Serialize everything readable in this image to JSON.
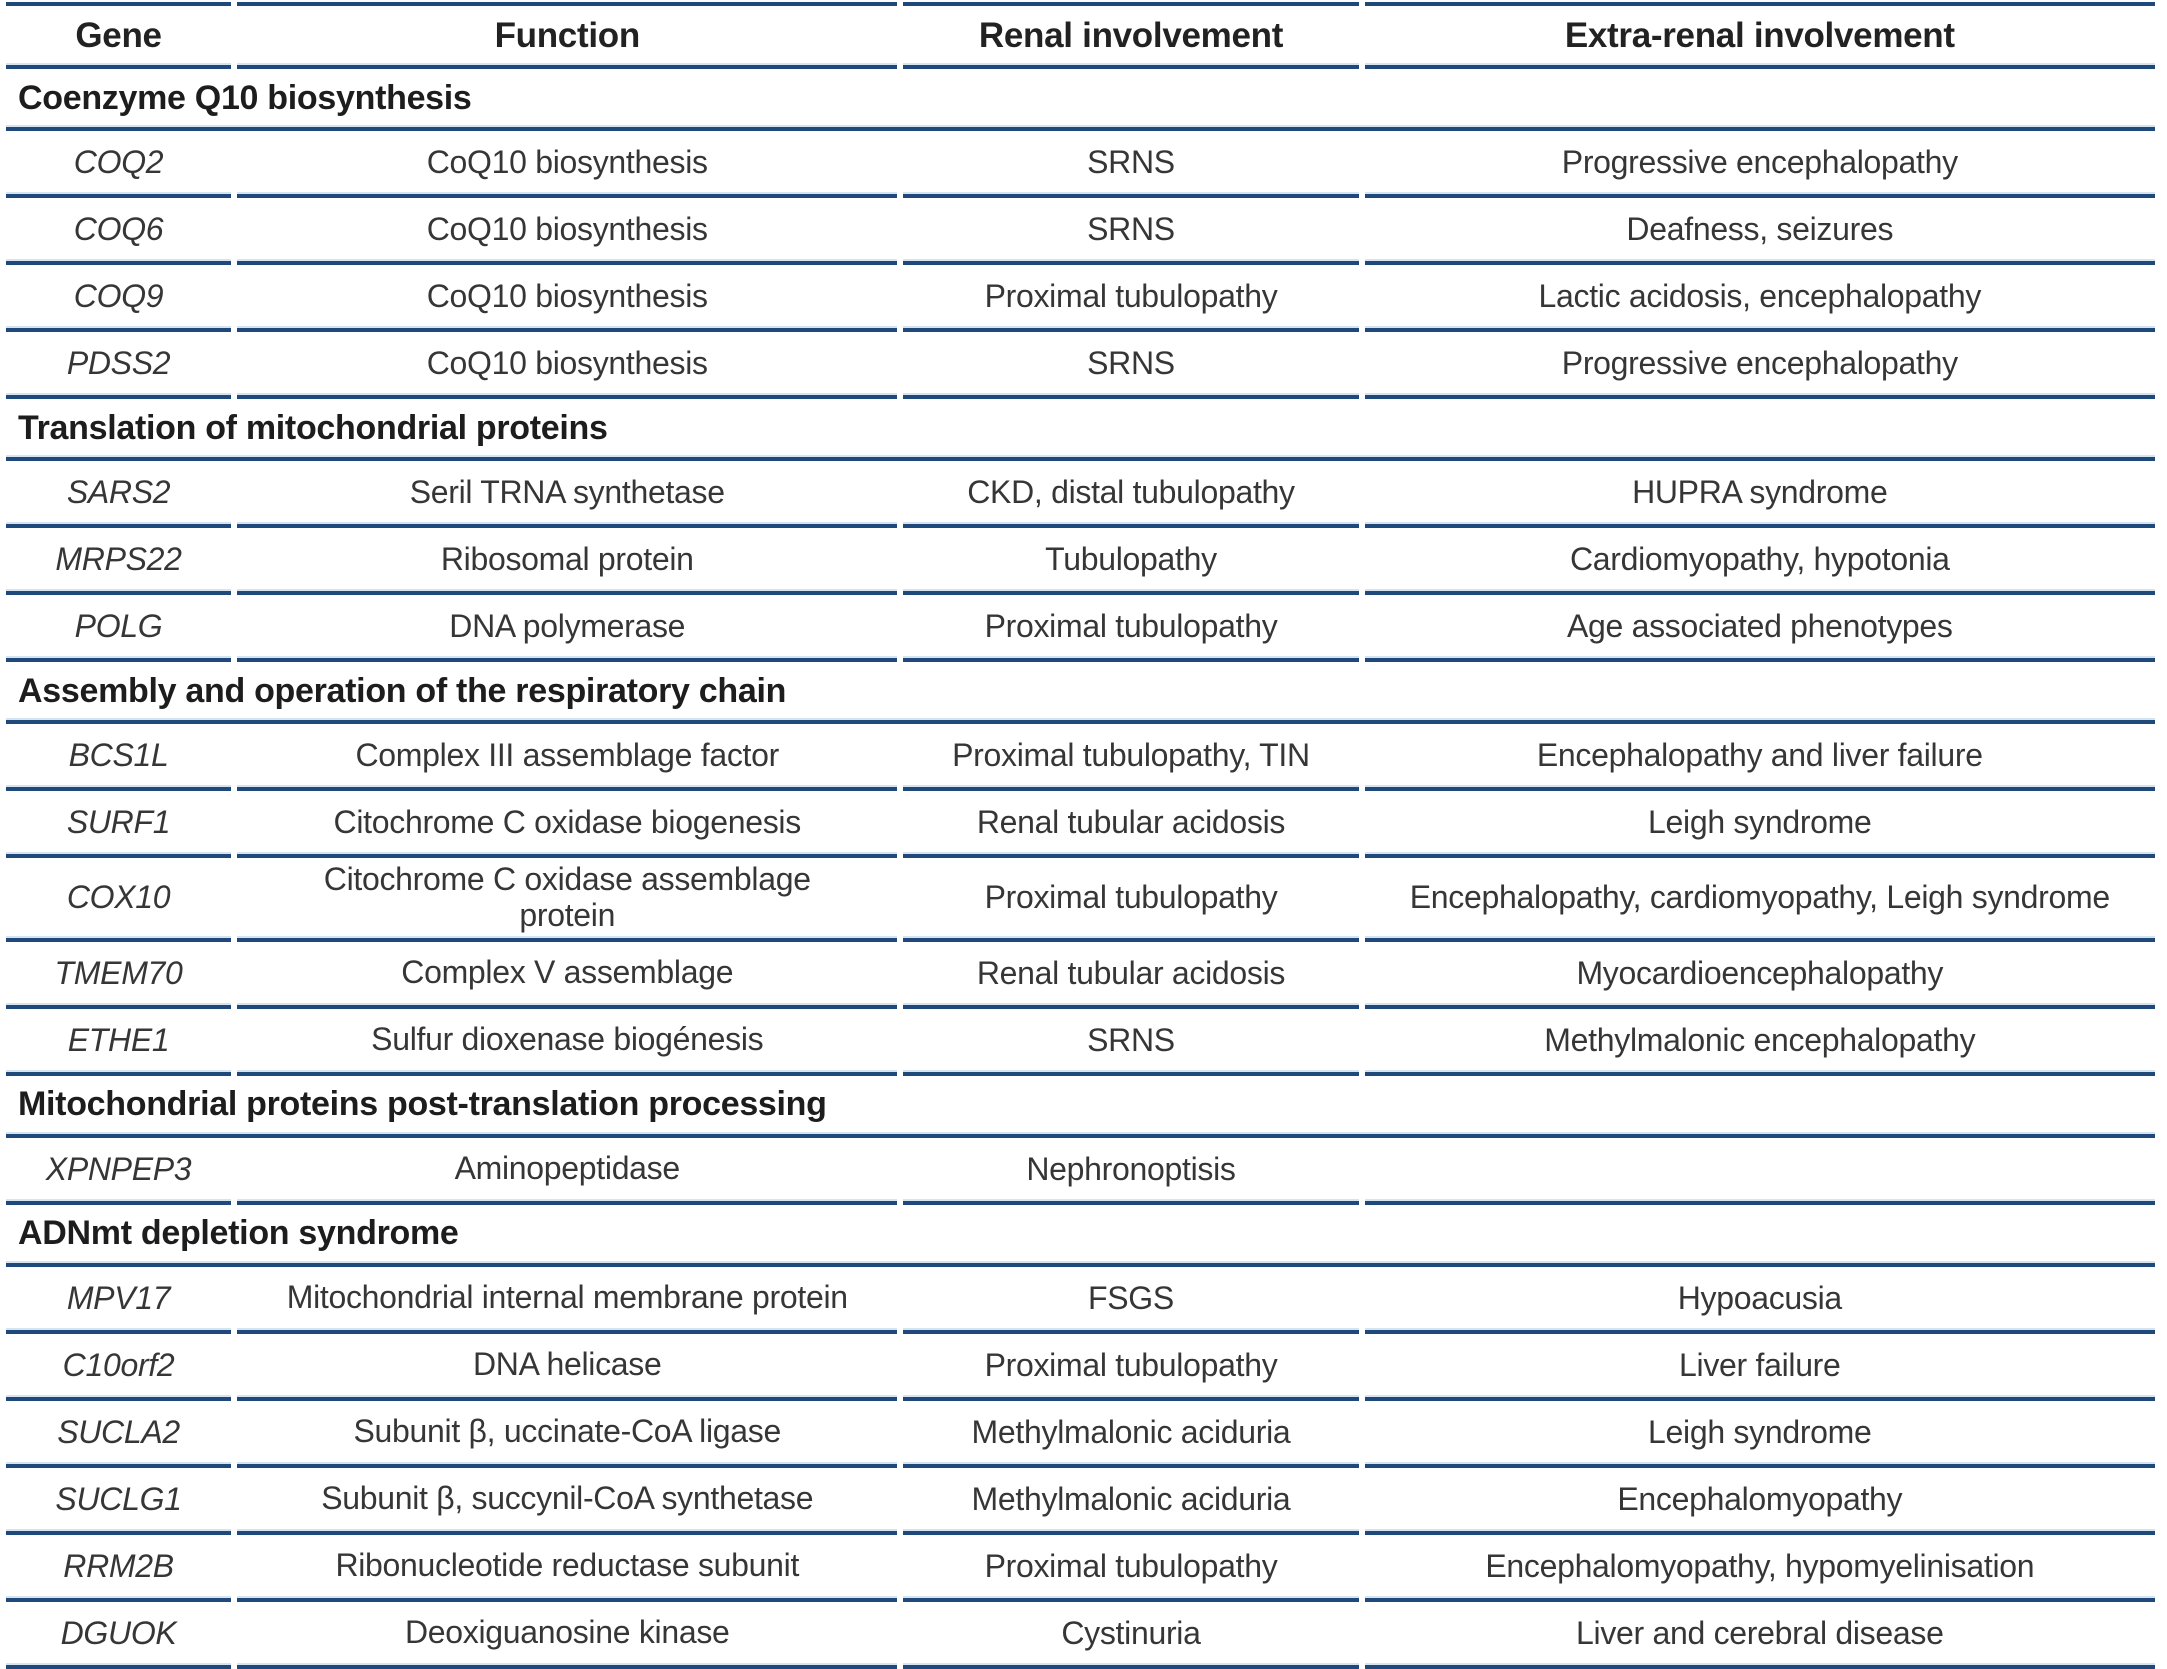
{
  "columns": [
    "Gene",
    "Function",
    "Renal involvement",
    "Extra-renal involvement"
  ],
  "border_color": "#20497b",
  "sections": [
    {
      "title": "Coenzyme Q10 biosynthesis",
      "rows": [
        {
          "cells": [
            "COQ2",
            "CoQ10 biosynthesis",
            "SRNS",
            "Progressive encephalopathy"
          ]
        },
        {
          "cells": [
            "COQ6",
            "CoQ10 biosynthesis",
            "SRNS",
            "Deafness, seizures"
          ]
        },
        {
          "cells": [
            "COQ9",
            "CoQ10 biosynthesis",
            "Proximal tubulopathy",
            "Lactic acidosis, encephalopathy"
          ]
        },
        {
          "cells": [
            "PDSS2",
            "CoQ10 biosynthesis",
            "SRNS",
            "Progressive encephalopathy"
          ]
        }
      ]
    },
    {
      "title": "Translation of mitochondrial proteins",
      "rows": [
        {
          "cells": [
            "SARS2",
            "Seril TRNA synthetase",
            "CKD, distal tubulopathy",
            "HUPRA syndrome"
          ]
        },
        {
          "cells": [
            "MRPS22",
            "Ribosomal protein",
            "Tubulopathy",
            "Cardiomyopathy, hypotonia"
          ]
        },
        {
          "cells": [
            "POLG",
            "DNA polymerase",
            "Proximal tubulopathy",
            "Age associated phenotypes"
          ]
        }
      ]
    },
    {
      "title": "Assembly and operation of the respiratory chain",
      "rows": [
        {
          "cells": [
            "BCS1L",
            "Complex III assemblage factor",
            "Proximal tubulopathy, TIN",
            "Encephalopathy and liver failure"
          ]
        },
        {
          "cells": [
            "SURF1",
            "Citochrome C oxidase biogenesis",
            "Renal tubular acidosis",
            "Leigh syndrome"
          ]
        },
        {
          "cells": [
            "COX10",
            "Citochrome C oxidase assemblage\nprotein",
            "Proximal tubulopathy",
            "Encephalopathy, cardiomyopathy, Leigh syndrome"
          ]
        },
        {
          "cells": [
            "TMEM70",
            "Complex V assemblage",
            "Renal tubular acidosis",
            "Myocardioencephalopathy"
          ]
        },
        {
          "cells": [
            "ETHE1",
            "Sulfur dioxenase biogénesis",
            "SRNS",
            "Methylmalonic encephalopathy"
          ]
        }
      ]
    },
    {
      "title": "Mitochondrial proteins post-translation processing",
      "rows": [
        {
          "cells": [
            "XPNPEP3",
            "Aminopeptidase",
            "Nephronoptisis",
            ""
          ]
        }
      ]
    },
    {
      "title": "ADNmt depletion syndrome",
      "rows": [
        {
          "cells": [
            "MPV17",
            "Mitochondrial internal membrane protein",
            "FSGS",
            "Hypoacusia"
          ]
        },
        {
          "cells": [
            "C10orf2",
            "DNA helicase",
            "Proximal tubulopathy",
            "Liver failure"
          ]
        },
        {
          "cells": [
            "SUCLA2",
            "Subunit β, uccinate-CoA ligase",
            "Methylmalonic aciduria",
            "Leigh syndrome"
          ]
        },
        {
          "cells": [
            "SUCLG1",
            "Subunit β, succynil-CoA synthetase",
            "Methylmalonic aciduria",
            "Encephalomyopathy"
          ]
        },
        {
          "cells": [
            "RRM2B",
            "Ribonucleotide reductase subunit",
            "Proximal tubulopathy",
            "Encephalomyopathy, hypomyelinisation"
          ]
        },
        {
          "cells": [
            "DGUOK",
            "Deoxiguanosine kinase",
            "Cystinuria",
            "Liver and cerebral disease"
          ]
        }
      ]
    }
  ]
}
